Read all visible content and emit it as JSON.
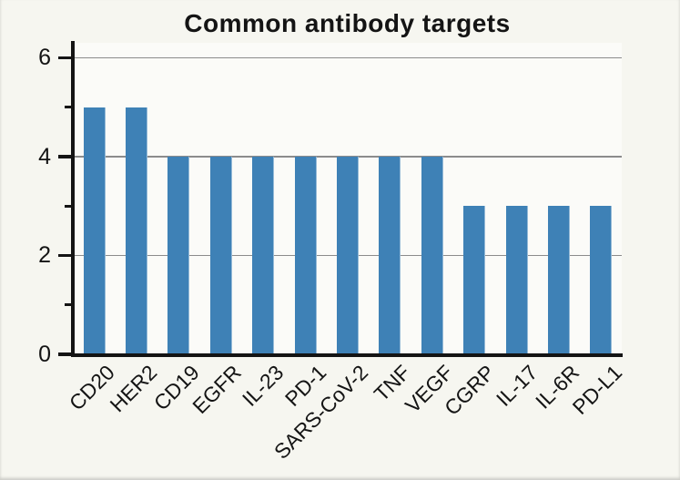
{
  "chart_data": {
    "type": "bar",
    "title": "Common antibody targets",
    "categories": [
      "CD20",
      "HER2",
      "CD19",
      "EGFR",
      "IL-23",
      "PD-1",
      "SARS-CoV-2",
      "TNF",
      "VEGF",
      "CGRP",
      "IL-17",
      "IL-6R",
      "PD-L1"
    ],
    "values": [
      5,
      5,
      4,
      4,
      4,
      4,
      4,
      4,
      4,
      3,
      3,
      3,
      3
    ],
    "xlabel": "",
    "ylabel": "",
    "ylim": [
      0,
      6
    ],
    "y_major_ticks": [
      0,
      2,
      4,
      6
    ],
    "y_minor_ticks": [
      1,
      3,
      5
    ],
    "gridline_values": [
      2,
      4,
      6
    ],
    "grid": "horizontal major only",
    "legend": "none",
    "x_label_rotation_deg": 45,
    "colors": {
      "bar": "#3e81b6",
      "figure_background": "#f6f6f0",
      "plot_background": "#fbfbf8",
      "gridline": "#8c8c8c",
      "axis": "#141414",
      "text": "#141414"
    }
  }
}
